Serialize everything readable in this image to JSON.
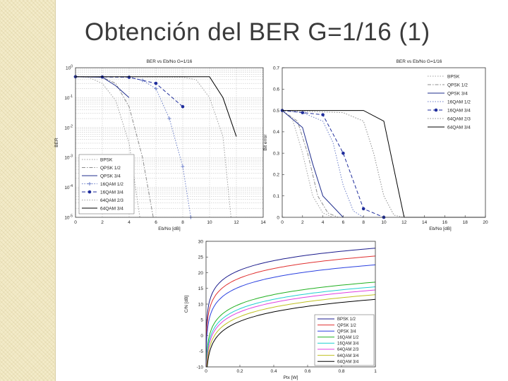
{
  "slide": {
    "title": "Obtención del BER G=1/16 (1)"
  },
  "chart_data": [
    {
      "type": "line",
      "title": "BER vs Eb/No G=1/16",
      "xlabel": "Eb/No [dB]",
      "ylabel": "BER",
      "y_scale": "log",
      "xlim": [
        0,
        14
      ],
      "ylim": [
        1e-05,
        1
      ],
      "x_ticks": [
        "0",
        "2",
        "4",
        "6",
        "8",
        "10",
        "12",
        "14"
      ],
      "y_ticks": [
        "10^0",
        "10^-1",
        "10^-2",
        "10^-3",
        "10^-4",
        "10^-5"
      ],
      "grid": true,
      "legend_position": "bottom-left",
      "series": [
        {
          "name": "BPSK",
          "color": "#a0a0a0",
          "dash": "dot",
          "marker": "none",
          "points": [
            [
              0,
              0.5
            ],
            [
              1,
              0.47
            ],
            [
              2,
              0.3
            ],
            [
              3,
              0.08
            ],
            [
              4,
              0.003
            ],
            [
              4.8,
              1e-05
            ]
          ]
        },
        {
          "name": "QPSK 1/2",
          "color": "#8c8c8c",
          "dash": "dashdot",
          "marker": "none",
          "points": [
            [
              0,
              0.5
            ],
            [
              2,
              0.48
            ],
            [
              3,
              0.3
            ],
            [
              4,
              0.05
            ],
            [
              5,
              0.001
            ],
            [
              5.8,
              1e-05
            ]
          ]
        },
        {
          "name": "QPSK 3/4",
          "color": "#1f2d8c",
          "dash": "solid",
          "marker": "none",
          "points": [
            [
              0,
              0.5
            ],
            [
              2,
              0.48
            ],
            [
              3,
              0.25
            ],
            [
              4,
              0.1
            ]
          ]
        },
        {
          "name": "16QAM 1/2",
          "color": "#6b7ec8",
          "dash": "dot",
          "marker": "plus",
          "points": [
            [
              0,
              0.5
            ],
            [
              4,
              0.48
            ],
            [
              5,
              0.38
            ],
            [
              6,
              0.2
            ],
            [
              7,
              0.02
            ],
            [
              8,
              0.0005
            ],
            [
              8.6,
              1e-05
            ]
          ]
        },
        {
          "name": "16QAM 3/4",
          "color": "#1f2d9c",
          "dash": "dash",
          "marker": "star",
          "points": [
            [
              0,
              0.5
            ],
            [
              2,
              0.49
            ],
            [
              4,
              0.48
            ],
            [
              6,
              0.3
            ],
            [
              8,
              0.05
            ]
          ]
        },
        {
          "name": "64QAM 2/3",
          "color": "#a0a0a0",
          "dash": "dot",
          "marker": "none",
          "points": [
            [
              0,
              0.5
            ],
            [
              6,
              0.49
            ],
            [
              8,
              0.48
            ],
            [
              9,
              0.4
            ],
            [
              10,
              0.1
            ],
            [
              11,
              0.005
            ],
            [
              11.6,
              1e-05
            ]
          ]
        },
        {
          "name": "64QAM 3/4",
          "color": "#000000",
          "dash": "solid",
          "marker": "none",
          "points": [
            [
              0,
              0.5
            ],
            [
              10,
              0.5
            ],
            [
              11,
              0.1
            ],
            [
              12,
              0.005
            ]
          ]
        }
      ]
    },
    {
      "type": "line",
      "title": "BER vs Eb/No G=1/16",
      "xlabel": "Eb/No [dB]",
      "ylabel": "Bit error",
      "xlim": [
        0,
        20
      ],
      "ylim": [
        0,
        0.7
      ],
      "x_ticks": [
        "0",
        "2",
        "4",
        "6",
        "8",
        "10",
        "12",
        "14",
        "16",
        "18",
        "20"
      ],
      "y_ticks": [
        "0",
        "0.1",
        "0.2",
        "0.3",
        "0.4",
        "0.5",
        "0.6",
        "0.7"
      ],
      "grid": false,
      "legend_position": "top-right",
      "series": [
        {
          "name": "BPSK",
          "color": "#a0a0a0",
          "dash": "dot",
          "marker": "none",
          "points": [
            [
              0,
              0.5
            ],
            [
              1,
              0.46
            ],
            [
              2,
              0.3
            ],
            [
              3,
              0.1
            ],
            [
              4,
              0.02
            ],
            [
              5,
              0
            ]
          ]
        },
        {
          "name": "QPSK 1/2",
          "color": "#8c8c8c",
          "dash": "dashdot",
          "marker": "none",
          "points": [
            [
              0,
              0.5
            ],
            [
              1.5,
              0.45
            ],
            [
              2.5,
              0.3
            ],
            [
              3.5,
              0.1
            ],
            [
              4.5,
              0.02
            ],
            [
              5.5,
              0
            ]
          ]
        },
        {
          "name": "QPSK 3/4",
          "color": "#1f2d8c",
          "dash": "solid",
          "marker": "none",
          "points": [
            [
              0,
              0.5
            ],
            [
              2,
              0.42
            ],
            [
              3,
              0.25
            ],
            [
              4,
              0.1
            ],
            [
              6,
              0
            ]
          ]
        },
        {
          "name": "16QAM 1/2",
          "color": "#6b7ec8",
          "dash": "dot",
          "marker": "none",
          "points": [
            [
              0,
              0.5
            ],
            [
              2,
              0.49
            ],
            [
              4,
              0.45
            ],
            [
              5,
              0.35
            ],
            [
              6,
              0.15
            ],
            [
              7,
              0.03
            ],
            [
              8,
              0
            ]
          ]
        },
        {
          "name": "16QAM 3/4",
          "color": "#1f2d9c",
          "dash": "dash",
          "marker": "star",
          "points": [
            [
              0,
              0.5
            ],
            [
              2,
              0.49
            ],
            [
              4,
              0.48
            ],
            [
              6,
              0.3
            ],
            [
              8,
              0.04
            ],
            [
              10,
              0
            ]
          ]
        },
        {
          "name": "64QAM 2/3",
          "color": "#8c8c8c",
          "dash": "dot",
          "marker": "none",
          "points": [
            [
              0,
              0.5
            ],
            [
              6,
              0.49
            ],
            [
              8,
              0.45
            ],
            [
              9,
              0.3
            ],
            [
              10,
              0.1
            ],
            [
              11,
              0.01
            ],
            [
              12,
              0
            ]
          ]
        },
        {
          "name": "64QAM 3/4",
          "color": "#000000",
          "dash": "solid",
          "marker": "none",
          "points": [
            [
              0,
              0.5
            ],
            [
              8,
              0.5
            ],
            [
              10,
              0.45
            ],
            [
              12,
              0
            ],
            [
              20,
              0
            ]
          ]
        }
      ]
    },
    {
      "type": "line",
      "title": "",
      "xlabel": "Ptx [W]",
      "ylabel": "C/N [dB]",
      "xlim": [
        0,
        1
      ],
      "ylim": [
        -10,
        30
      ],
      "x_ticks": [
        "0",
        "0.2",
        "0.4",
        "0.6",
        "0.8",
        "1"
      ],
      "y_ticks": [
        "30",
        "25",
        "20",
        "15",
        "10",
        "5",
        "0",
        "-5",
        "-10"
      ],
      "grid": false,
      "legend_position": "bottom-right",
      "curve_note": "C/N = c + 10*log10(Ptx)",
      "series": [
        {
          "name": "BPSK 1/2",
          "color": "#1a1a8c",
          "offset": 27.8
        },
        {
          "name": "QPSK 1/2",
          "color": "#e03030",
          "offset": 25.3
        },
        {
          "name": "QPSK 3/4",
          "color": "#2a40e0",
          "offset": 22.5
        },
        {
          "name": "16QAM 1/2",
          "color": "#20b020",
          "offset": 17.0
        },
        {
          "name": "16QAM 3/4",
          "color": "#20d0d0",
          "offset": 15.5
        },
        {
          "name": "64QAM 2/3",
          "color": "#e040e0",
          "offset": 14.5
        },
        {
          "name": "64QAM 3/4",
          "color": "#c0c020",
          "offset": 13.0
        },
        {
          "name": "64QAM 3/4",
          "color": "#000000",
          "offset": 11.5
        }
      ]
    }
  ]
}
